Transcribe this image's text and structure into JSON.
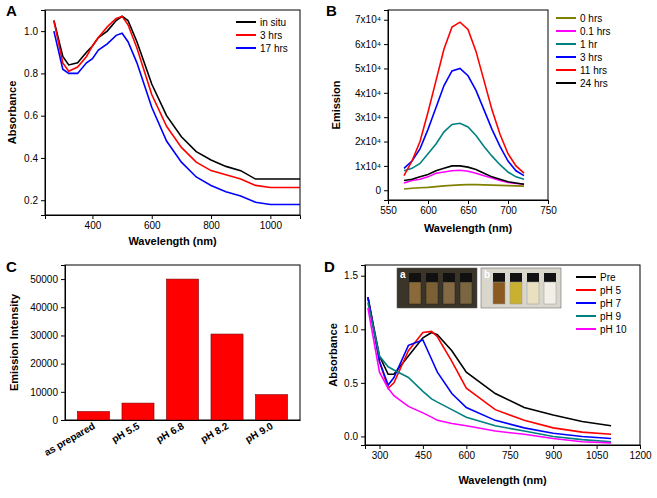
{
  "chart_data": [
    {
      "type": "line",
      "title": "A",
      "x_label": "Wavelength (nm)",
      "y_label": "Absorbance",
      "x": [
        270,
        300,
        320,
        350,
        380,
        400,
        420,
        450,
        480,
        500,
        520,
        550,
        600,
        650,
        700,
        750,
        800,
        850,
        900,
        950,
        1000,
        1050,
        1100
      ],
      "series": [
        {
          "name": "in situ",
          "color": "#000000",
          "values": [
            1.05,
            0.88,
            0.84,
            0.85,
            0.9,
            0.93,
            0.97,
            1.0,
            1.05,
            1.07,
            1.05,
            0.95,
            0.75,
            0.6,
            0.5,
            0.43,
            0.39,
            0.36,
            0.34,
            0.3,
            0.3,
            0.3,
            0.3
          ]
        },
        {
          "name": "3 hrs",
          "color": "#ff0000",
          "values": [
            1.05,
            0.85,
            0.81,
            0.83,
            0.88,
            0.93,
            0.97,
            1.02,
            1.06,
            1.07,
            1.03,
            0.92,
            0.7,
            0.55,
            0.45,
            0.38,
            0.34,
            0.32,
            0.3,
            0.27,
            0.26,
            0.26,
            0.26
          ]
        },
        {
          "name": "17 hrs",
          "color": "#0000ff",
          "values": [
            1.0,
            0.82,
            0.8,
            0.8,
            0.85,
            0.87,
            0.91,
            0.94,
            0.98,
            0.99,
            0.95,
            0.85,
            0.64,
            0.48,
            0.38,
            0.31,
            0.27,
            0.24,
            0.22,
            0.19,
            0.18,
            0.18,
            0.18
          ]
        }
      ],
      "xlim": [
        240,
        1100
      ],
      "xticks": [
        400,
        600,
        800,
        1000
      ],
      "ylim": [
        0.13,
        1.1
      ],
      "yticks": [
        0.2,
        0.4,
        0.6,
        0.8,
        {
          "value": 1,
          "label": "1.0"
        }
      ],
      "grid": false,
      "legend": "upper right"
    },
    {
      "type": "line",
      "title": "B",
      "x_label": "Wavelength (nm)",
      "y_label": "Emission",
      "x": [
        570,
        580,
        590,
        600,
        610,
        620,
        630,
        640,
        650,
        660,
        670,
        680,
        690,
        700,
        710,
        720
      ],
      "series": [
        {
          "name": "0 hrs",
          "color": "#808000",
          "values": [
            500,
            800,
            1000,
            1200,
            1500,
            1800,
            2000,
            2200,
            2300,
            2300,
            2200,
            2100,
            2000,
            1900,
            1800,
            1700
          ]
        },
        {
          "name": "0.1 hrs",
          "color": "#ff00ff",
          "values": [
            3000,
            4000,
            4500,
            5500,
            7000,
            7500,
            8000,
            8200,
            7800,
            7000,
            6000,
            5000,
            4000,
            3200,
            2800,
            2500
          ]
        },
        {
          "name": "1 hr",
          "color": "#008080",
          "values": [
            8000,
            9000,
            11000,
            15000,
            19000,
            24000,
            27000,
            27500,
            26000,
            22500,
            18000,
            14000,
            10500,
            7500,
            5500,
            4500
          ]
        },
        {
          "name": "3 hrs",
          "color": "#0000ff",
          "values": [
            9000,
            12000,
            17000,
            25000,
            34000,
            43000,
            49000,
            50000,
            47000,
            41000,
            33000,
            25000,
            18000,
            12000,
            8000,
            6000
          ]
        },
        {
          "name": "11 hrs",
          "color": "#ff0000",
          "values": [
            6000,
            12000,
            20000,
            32000,
            45000,
            58000,
            67000,
            69000,
            66000,
            57000,
            45000,
            33000,
            23000,
            15000,
            10000,
            7000
          ]
        },
        {
          "name": "24 hrs",
          "color": "#000000",
          "values": [
            4000,
            4500,
            5500,
            6500,
            8000,
            9000,
            10000,
            10000,
            9500,
            8500,
            7000,
            5500,
            4500,
            3500,
            3000,
            2500
          ]
        }
      ],
      "xlim": [
        550,
        750
      ],
      "xticks": [
        550,
        600,
        650,
        700,
        750
      ],
      "ylim": [
        -4000,
        74000
      ],
      "yticks": [
        0,
        {
          "value": 10000,
          "label": "1x10⁴"
        },
        {
          "value": 20000,
          "label": "2x10⁴"
        },
        {
          "value": 30000,
          "label": "3x10⁴"
        },
        {
          "value": 40000,
          "label": "4x10⁴"
        },
        {
          "value": 50000,
          "label": "5x10⁴"
        },
        {
          "value": 60000,
          "label": "6x10⁴"
        },
        {
          "value": 70000,
          "label": "7x10⁴"
        }
      ],
      "grid": false,
      "legend": "right"
    },
    {
      "type": "bar",
      "title": "C",
      "y_label": "Emission Intensity",
      "categories": [
        "as prepared",
        "pH 5.5",
        "pH 6.8",
        "pH 8.2",
        "pH 9.0"
      ],
      "values": [
        3000,
        6000,
        50000,
        30500,
        9000
      ],
      "color": "#ff0000",
      "ylim": [
        0,
        55000
      ],
      "yticks": [
        0,
        10000,
        20000,
        30000,
        40000,
        50000
      ],
      "grid": false
    },
    {
      "type": "line",
      "title": "D",
      "x_label": "Wavelength (nm)",
      "y_label": "Absorbance",
      "annotations": [
        "a",
        "b"
      ],
      "x": [
        260,
        300,
        330,
        350,
        400,
        450,
        480,
        500,
        550,
        600,
        700,
        800,
        900,
        1000,
        1100
      ],
      "series": [
        {
          "name": "Pre",
          "color": "#000000",
          "values": [
            1.3,
            0.75,
            0.58,
            0.58,
            0.75,
            0.92,
            0.97,
            0.95,
            0.8,
            0.6,
            0.4,
            0.27,
            0.2,
            0.14,
            0.1
          ]
        },
        {
          "name": "pH 5",
          "color": "#ff0000",
          "values": [
            1.3,
            0.7,
            0.45,
            0.5,
            0.8,
            0.97,
            0.98,
            0.93,
            0.7,
            0.45,
            0.25,
            0.15,
            0.08,
            0.04,
            0.02
          ]
        },
        {
          "name": "pH 7",
          "color": "#0000ff",
          "values": [
            1.3,
            0.7,
            0.48,
            0.55,
            0.85,
            0.9,
            0.72,
            0.6,
            0.4,
            0.27,
            0.15,
            0.08,
            0.03,
            0.0,
            -0.02
          ]
        },
        {
          "name": "pH 9",
          "color": "#008080",
          "values": [
            1.25,
            0.75,
            0.65,
            0.62,
            0.55,
            0.42,
            0.35,
            0.32,
            0.25,
            0.18,
            0.1,
            0.05,
            0.0,
            -0.03,
            -0.05
          ]
        },
        {
          "name": "pH 10",
          "color": "#ff00ff",
          "values": [
            1.2,
            0.6,
            0.45,
            0.38,
            0.28,
            0.22,
            0.18,
            0.15,
            0.12,
            0.1,
            0.05,
            0.02,
            -0.02,
            -0.05,
            -0.06
          ]
        }
      ],
      "xlim": [
        250,
        1200
      ],
      "xticks": [
        300,
        450,
        600,
        750,
        900,
        1050,
        1200
      ],
      "ylim": [
        -0.08,
        1.6
      ],
      "yticks": [
        {
          "value": 0,
          "label": "0.0"
        },
        0.5,
        {
          "value": 1,
          "label": "1.0"
        },
        1.5
      ],
      "grid": false,
      "legend": "upper right"
    }
  ]
}
